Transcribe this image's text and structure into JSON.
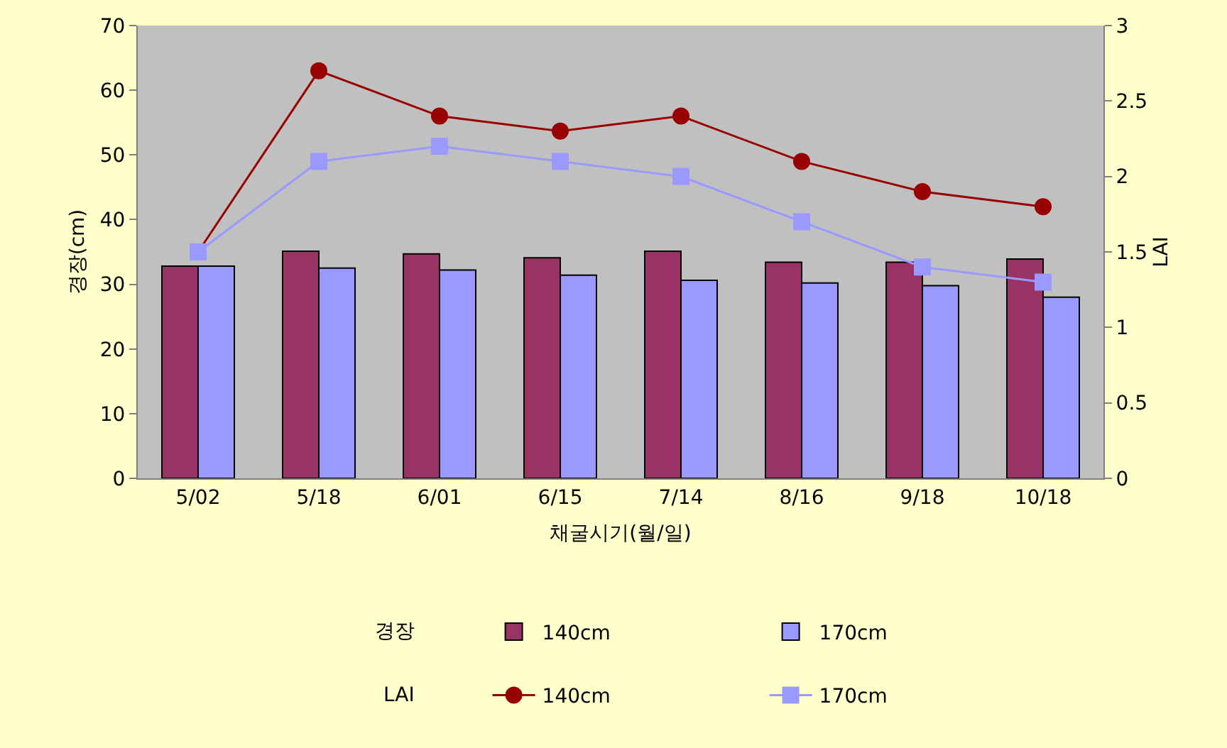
{
  "chart_data": {
    "type": "bar",
    "xlabel": "채굴시기(월/일)",
    "ylabel": "경장(cm)",
    "y2label": "LAI",
    "categories": [
      "5/02",
      "5/18",
      "6/01",
      "6/15",
      "7/14",
      "8/16",
      "9/18",
      "10/18"
    ],
    "series": [
      {
        "name": "140cm",
        "color": "#993366",
        "values": [
          32.8,
          35.1,
          34.7,
          34.1,
          35.1,
          33.4,
          33.4,
          33.9
        ]
      },
      {
        "name": "170cm",
        "color": "#9999ff",
        "values": [
          32.8,
          32.5,
          32.2,
          31.4,
          30.6,
          30.2,
          29.8,
          28.0
        ]
      },
      {
        "name": "140cm",
        "type": "line",
        "axis": "y2",
        "marker": "circle",
        "color": "#990000",
        "values": [
          1.5,
          2.7,
          2.4,
          2.3,
          2.4,
          2.1,
          1.9,
          1.8
        ]
      },
      {
        "name": "170cm",
        "type": "line",
        "axis": "y2",
        "marker": "square",
        "color": "#9999ff",
        "values": [
          1.5,
          2.1,
          2.2,
          2.1,
          2.0,
          1.7,
          1.4,
          1.3
        ]
      }
    ],
    "ylim": [
      0,
      70
    ],
    "yticks": [
      0,
      10,
      20,
      30,
      40,
      50,
      60,
      70
    ],
    "y2lim": [
      0,
      3
    ],
    "y2ticks": [
      0,
      0.5,
      1,
      1.5,
      2,
      2.5,
      3
    ],
    "annotations": [
      "경장",
      "LAI"
    ],
    "grid": false,
    "legend": "bottom"
  }
}
